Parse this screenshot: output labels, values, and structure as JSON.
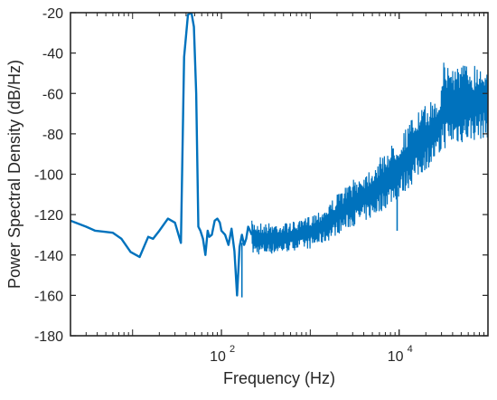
{
  "chart_data": {
    "type": "line",
    "title": "",
    "xlabel": "Frequency (Hz)",
    "ylabel": "Power Spectral Density (dB/Hz)",
    "xscale": "log",
    "xlim": [
      2,
      100000
    ],
    "ylim": [
      -180,
      -20
    ],
    "yticks": [
      -180,
      -160,
      -140,
      -120,
      -100,
      -80,
      -60,
      -40,
      -20
    ],
    "xticks": [
      {
        "value": 100,
        "base": "10",
        "exp": "2"
      },
      {
        "value": 10000,
        "base": "10",
        "exp": "4"
      }
    ],
    "grid": false,
    "legend": "none",
    "line_color": "#0072bd",
    "series": [
      {
        "x": [
          2,
          3,
          3.8,
          4.8,
          6,
          7.5,
          9.5,
          12,
          15,
          17,
          20,
          25,
          30,
          35,
          38,
          42,
          46,
          49,
          52,
          55,
          58,
          62,
          66,
          70,
          73,
          78,
          84,
          90,
          96,
          100,
          110,
          120,
          130,
          140,
          150,
          160,
          170,
          180,
          190,
          200,
          220
        ],
        "y": [
          -123,
          -126,
          -128,
          -128.5,
          -129,
          -132,
          -138.5,
          -141,
          -131,
          -132,
          -128,
          -122,
          -124,
          -134,
          -42,
          -21,
          -20,
          -27,
          -60,
          -126,
          -128,
          -132,
          -140,
          -128,
          -131,
          -130,
          -123,
          -122,
          -124,
          -128,
          -130,
          -135,
          -127,
          -138,
          -160,
          -136,
          -130,
          -135,
          -132,
          -126,
          -130
        ]
      },
      {
        "name": "",
        "noise_band": {
          "x": [
            220,
            300,
            500,
            800,
            1000,
            1500,
            2000,
            3000,
            5000,
            8000,
            10000,
            15000,
            20000,
            29000,
            30000,
            50000,
            100000
          ],
          "upper": [
            -123,
            -124,
            -124,
            -123,
            -120,
            -116,
            -110,
            -103,
            -96,
            -86,
            -82,
            -70,
            -66,
            -60,
            -44,
            -45,
            -45
          ],
          "lower": [
            -140,
            -140,
            -139,
            -137,
            -137,
            -134,
            -130,
            -126,
            -122,
            -115,
            -112,
            -104,
            -98,
            -92,
            -88,
            -85,
            -82
          ]
        },
        "outliers": [
          {
            "x": 9500,
            "y": -128
          },
          {
            "x": 170,
            "y": -161
          }
        ]
      }
    ]
  }
}
